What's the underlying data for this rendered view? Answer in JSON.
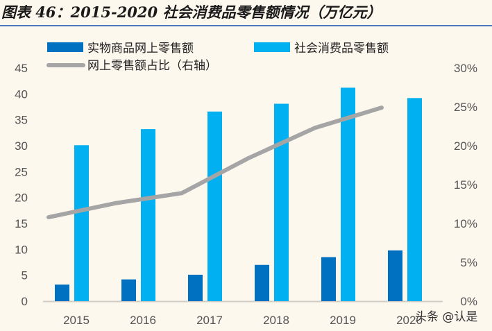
{
  "title": "图表 46：2015-2020 社会消费品零售额情况（万亿元）",
  "watermark": "头条 @认是",
  "chart_data": {
    "type": "bar",
    "title": "图表 46：2015-2020 社会消费品零售额情况（万亿元）",
    "categories": [
      "2015",
      "2016",
      "2017",
      "2018",
      "2019",
      "2020"
    ],
    "series": [
      {
        "name": "实物商品网上零售额",
        "type": "bar",
        "axis": "left",
        "color": "#0070c0",
        "values": [
          3.2,
          4.2,
          5.1,
          7.0,
          8.5,
          9.8
        ]
      },
      {
        "name": "社会消费品零售额",
        "type": "bar",
        "axis": "left",
        "color": "#00b0f0",
        "values": [
          30.1,
          33.2,
          36.6,
          38.1,
          41.2,
          39.2
        ]
      },
      {
        "name": "网上零售额占比（右轴）",
        "type": "line",
        "axis": "right",
        "color": "#a5a5a5",
        "values": [
          10.8,
          12.6,
          13.9,
          18.4,
          22.3,
          24.9
        ]
      }
    ],
    "left_axis": {
      "ylim": [
        0,
        45
      ],
      "ticks": [
        "0",
        "5",
        "10",
        "15",
        "20",
        "25",
        "30",
        "35",
        "40",
        "45"
      ]
    },
    "right_axis": {
      "ylim": [
        0,
        30
      ],
      "ticks": [
        "0%",
        "5%",
        "10%",
        "15%",
        "20%",
        "25%",
        "30%"
      ]
    },
    "legend": "top",
    "grid": false
  }
}
